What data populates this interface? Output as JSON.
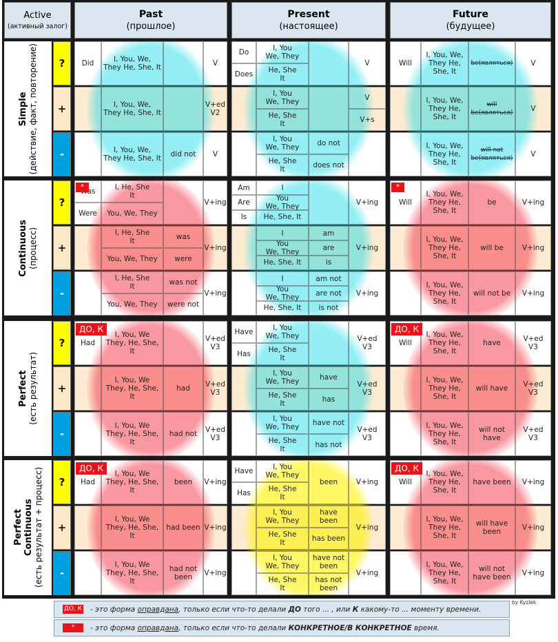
{
  "header": {
    "corner_title": "Active",
    "corner_subtitle": "(активный залог)",
    "times": [
      {
        "name": "Past",
        "subtitle": "(прошлое)"
      },
      {
        "name": "Present",
        "subtitle": "(настоящее)"
      },
      {
        "name": "Future",
        "subtitle": "(будущее)"
      }
    ]
  },
  "tenses": [
    {
      "name": "Simple",
      "desc": "(действие, факт, повторение)",
      "rows": [
        {
          "sign": "?",
          "past": {
            "aux": "Did",
            "subject": "I, You, We,\nThey He, She, It",
            "verb": "V"
          },
          "present": {
            "lines": [
              {
                "aux": "Do",
                "subject": "I, You\nWe, They"
              },
              {
                "aux": "Does",
                "subject": "He, She\nIt"
              }
            ],
            "verb": "V"
          },
          "future": {
            "aux": "Will",
            "subject": "I, You, We,\nThey He,\nShe, It",
            "aux2": "be(являться)",
            "verb": "V"
          }
        },
        {
          "sign": "+",
          "past": {
            "subject": "I, You, We,\nThey He, She, It",
            "verb": "V+ed\nV2"
          },
          "present": {
            "lines": [
              {
                "subject": "I, You\nWe, They",
                "verb": "V"
              },
              {
                "subject": "He, She\nIt",
                "verb": "V+s"
              }
            ]
          },
          "future": {
            "subject": "I, You, We,\nThey He,\nShe, It",
            "aux2": "will\nbe(являться)",
            "verb": "V"
          }
        },
        {
          "sign": "-",
          "past": {
            "subject": "I, You, We,\nThey He, She, It",
            "aux2": "did not",
            "verb": "V"
          },
          "present": {
            "lines": [
              {
                "subject": "I, You\nWe, They",
                "aux2": "do not"
              },
              {
                "subject": "He, She\nIt",
                "aux2": "does not"
              }
            ]
          },
          "future": {
            "subject": "I, You, We,\nThey He,\nShe, It",
            "aux2": "will not\nbe(являться)",
            "verb": "V"
          }
        }
      ]
    },
    {
      "name": "Continuous",
      "desc": "(процесс)",
      "rows": [
        {
          "sign": "?",
          "past": {
            "badge": "*",
            "lines": [
              {
                "aux": "Was",
                "subject": "I, He, She\nIt"
              },
              {
                "aux": "Were",
                "subject": "You, We, They"
              }
            ],
            "verb": "V+ing"
          },
          "present": {
            "lines": [
              {
                "aux": "Am",
                "subject": "I"
              },
              {
                "aux": "Are",
                "subject": "You\nWe, They"
              },
              {
                "aux": "Is",
                "subject": "He, She, It"
              }
            ],
            "verb": "V+ing"
          },
          "future": {
            "badge": "*",
            "aux": "Will",
            "subject": "I, You, We,\nThey He,\nShe, It",
            "aux2": "be",
            "verb": "V+ing"
          }
        },
        {
          "sign": "+",
          "past": {
            "lines": [
              {
                "subject": "I, He, She\nIt",
                "aux2": "was"
              },
              {
                "subject": "You, We, They",
                "aux2": "were"
              }
            ],
            "verb": "V+ing"
          },
          "present": {
            "lines": [
              {
                "subject": "I",
                "aux2": "am"
              },
              {
                "subject": "You\nWe, They",
                "aux2": "are"
              },
              {
                "subject": "He, She, It",
                "aux2": "is"
              }
            ],
            "verb": "V+ing"
          },
          "future": {
            "subject": "I, You, We,\nThey He,\nShe, It",
            "aux2": "will be",
            "verb": "V+ing"
          }
        },
        {
          "sign": "-",
          "past": {
            "lines": [
              {
                "subject": "I, He, She\nIt",
                "aux2": "was not"
              },
              {
                "subject": "You, We, They",
                "aux2": "were not"
              }
            ],
            "verb": "V+ing"
          },
          "present": {
            "lines": [
              {
                "subject": "I",
                "aux2": "am not"
              },
              {
                "subject": "You\nWe, They",
                "aux2": "are not"
              },
              {
                "subject": "He, She, It",
                "aux2": "is not"
              }
            ],
            "verb": "V+ing"
          },
          "future": {
            "subject": "I, You, We,\nThey He,\nShe, It",
            "aux2": "will not be",
            "verb": "V+ing"
          }
        }
      ]
    },
    {
      "name": "Perfect",
      "desc": "(есть результат)",
      "rows": [
        {
          "sign": "?",
          "past": {
            "badge": "ДО, К",
            "aux": "Had",
            "subject": "I, You, We\nThey, He, She,\nIt",
            "verb": "V+ed\nV3"
          },
          "present": {
            "lines": [
              {
                "aux": "Have",
                "subject": "I, You\nWe, They"
              },
              {
                "aux": "Has",
                "subject": "He, She\nIt"
              }
            ],
            "verb": "V+ed\nV3"
          },
          "future": {
            "badge": "ДО, К",
            "aux": "Will",
            "subject": "I, You, We,\nThey He,\nShe, It",
            "aux2": "have",
            "verb": "V+ed\nV3"
          }
        },
        {
          "sign": "+",
          "past": {
            "subject": "I, You, We\nThey, He, She,\nIt",
            "aux2": "had",
            "verb": "V+ed\nV3"
          },
          "present": {
            "lines": [
              {
                "subject": "I, You\nWe, They",
                "aux2": "have"
              },
              {
                "subject": "He, She\nIt",
                "aux2": "has"
              }
            ],
            "verb": "V+ed\nV3"
          },
          "future": {
            "subject": "I, You, We,\nThey He,\nShe, It",
            "aux2": "will have",
            "verb": "V+ed\nV3"
          }
        },
        {
          "sign": "-",
          "past": {
            "subject": "I, You, We\nThey, He, She,\nIt",
            "aux2": "had not",
            "verb": "V+ed\nV3"
          },
          "present": {
            "lines": [
              {
                "subject": "I, You\nWe, They",
                "aux2": "have not"
              },
              {
                "subject": "He, She\nIt",
                "aux2": "has not"
              }
            ],
            "verb": "V+ed\nV3"
          },
          "future": {
            "subject": "I, You, We,\nThey He,\nShe, It",
            "aux2": "will not\nhave",
            "verb": "V+ed\nV3"
          }
        }
      ]
    },
    {
      "name": "Perfect\nContinuous",
      "desc": "(есть результат + процесс)",
      "rows": [
        {
          "sign": "?",
          "past": {
            "badge": "ДО, К",
            "aux": "Had",
            "subject": "I, You, We\nThey, He, She,\nIt",
            "aux2": "been",
            "verb": "V+ing"
          },
          "present": {
            "lines": [
              {
                "aux": "Have",
                "subject": "I, You\nWe, They"
              },
              {
                "aux": "Has",
                "subject": "He, She\nIt"
              }
            ],
            "aux2": "been",
            "verb": "V+ing"
          },
          "future": {
            "badge": "ДО, К",
            "aux": "Will",
            "subject": "I, You, We,\nThey He,\nShe, It",
            "aux2": "have been",
            "verb": "V+ing"
          }
        },
        {
          "sign": "+",
          "past": {
            "subject": "I, You, We\nThey, He, She,\nIt",
            "aux2": "had  been",
            "verb": "V+ing"
          },
          "present": {
            "lines": [
              {
                "subject": "I, You\nWe, They",
                "aux2": "have\nbeen"
              },
              {
                "subject": "He, She\nIt",
                "aux2": "has been"
              }
            ],
            "verb": "V+ing"
          },
          "future": {
            "subject": "I, You, We,\nThey He,\nShe, It",
            "aux2": "will have\nbeen",
            "verb": "V+ing"
          }
        },
        {
          "sign": "-",
          "past": {
            "subject": "I, You, We\nThey, He, She,\nIt",
            "aux2": "had not\nbeen",
            "verb": "V+ing"
          },
          "present": {
            "lines": [
              {
                "subject": "I, You\nWe, They",
                "aux2": "have not\nbeen"
              },
              {
                "subject": "He, She\nIt",
                "aux2": "has not\nbeen"
              }
            ],
            "verb": "V+ing"
          },
          "future": {
            "subject": "I, You, We,\nThey He,\nShe, It",
            "aux2": "will not\nhave been",
            "verb": "V+ing"
          }
        }
      ]
    }
  ],
  "legend": [
    {
      "badge": "ДО, К",
      "parts": [
        {
          "text": "- это форма "
        },
        {
          "text": "оправдана",
          "underline": true
        },
        {
          "text": ", только если что-то делали "
        },
        {
          "text": "ДО",
          "bold": true
        },
        {
          "text": " того ... , или "
        },
        {
          "text": "К",
          "bold": true
        },
        {
          "text": " какому-то ... моменту времени."
        }
      ]
    },
    {
      "badge": "*",
      "parts": [
        {
          "text": "- это форма "
        },
        {
          "text": "оправдана",
          "underline": true
        },
        {
          "text": ", только если что-то делали "
        },
        {
          "text": "КОНКРЕТНОЕ/В КОНКРЕТНОЕ",
          "bold": true
        },
        {
          "text": " время."
        }
      ]
    }
  ],
  "credit": "by Kyzlek"
}
